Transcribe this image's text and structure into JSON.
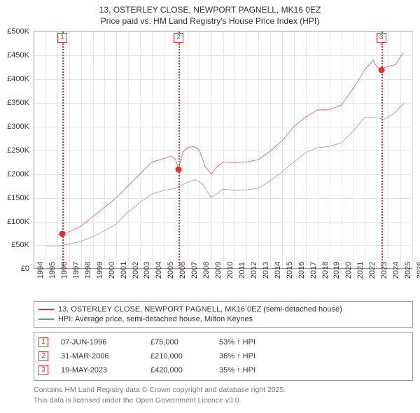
{
  "title_line1": "13, OSTERLEY CLOSE, NEWPORT PAGNELL, MK16 0EZ",
  "title_line2": "Price paid vs. HM Land Registry's House Price Index (HPI)",
  "chart": {
    "type": "line",
    "background_color": "#ffffff",
    "grid_color": "#e4e4e4",
    "axis_color": "#999999",
    "xlim": [
      1994,
      2026
    ],
    "ylim": [
      0,
      500000
    ],
    "ytick_step": 50000,
    "yticks": [
      0,
      50000,
      100000,
      150000,
      200000,
      250000,
      300000,
      350000,
      400000,
      450000,
      500000
    ],
    "ytick_labels": [
      "£0",
      "£50K",
      "£100K",
      "£150K",
      "£200K",
      "£250K",
      "£300K",
      "£350K",
      "£400K",
      "£450K",
      "£500K"
    ],
    "xticks": [
      1994,
      1995,
      1996,
      1997,
      1998,
      1999,
      2000,
      2001,
      2002,
      2003,
      2004,
      2005,
      2006,
      2007,
      2008,
      2009,
      2010,
      2011,
      2012,
      2013,
      2014,
      2015,
      2016,
      2017,
      2018,
      2019,
      2020,
      2021,
      2022,
      2023,
      2024,
      2025,
      2026
    ],
    "label_fontsize": 11,
    "line_width": 2,
    "series": [
      {
        "key": "price_paid",
        "label": "13, OSTERLEY CLOSE, NEWPORT PAGNELL, MK16 0EZ (semi-detached house)",
        "color": "#e03030",
        "data": [
          [
            1996.0,
            72000
          ],
          [
            1996.43,
            75000
          ],
          [
            1997.0,
            78000
          ],
          [
            1998.0,
            90000
          ],
          [
            1999.0,
            110000
          ],
          [
            2000.0,
            130000
          ],
          [
            2001.0,
            150000
          ],
          [
            2002.0,
            175000
          ],
          [
            2003.0,
            200000
          ],
          [
            2004.0,
            225000
          ],
          [
            2005.0,
            232000
          ],
          [
            2005.6,
            238000
          ],
          [
            2006.0,
            230000
          ],
          [
            2006.25,
            210000
          ],
          [
            2006.6,
            245000
          ],
          [
            2007.0,
            255000
          ],
          [
            2007.5,
            258000
          ],
          [
            2008.0,
            250000
          ],
          [
            2008.5,
            215000
          ],
          [
            2009.0,
            200000
          ],
          [
            2009.5,
            215000
          ],
          [
            2010.0,
            225000
          ],
          [
            2011.0,
            224000
          ],
          [
            2012.0,
            225000
          ],
          [
            2013.0,
            230000
          ],
          [
            2014.0,
            248000
          ],
          [
            2015.0,
            270000
          ],
          [
            2016.0,
            300000
          ],
          [
            2017.0,
            320000
          ],
          [
            2018.0,
            335000
          ],
          [
            2019.0,
            335000
          ],
          [
            2020.0,
            345000
          ],
          [
            2021.0,
            380000
          ],
          [
            2022.0,
            420000
          ],
          [
            2022.7,
            440000
          ],
          [
            2023.0,
            425000
          ],
          [
            2023.38,
            420000
          ],
          [
            2023.8,
            425000
          ],
          [
            2024.2,
            428000
          ],
          [
            2024.6,
            430000
          ],
          [
            2025.0,
            448000
          ],
          [
            2025.3,
            455000
          ]
        ]
      },
      {
        "key": "hpi",
        "label": "HPI: Average price, semi-detached house, Milton Keynes",
        "color": "#5e8fc8",
        "data": [
          [
            1995.0,
            48000
          ],
          [
            1996.0,
            48000
          ],
          [
            1997.0,
            52000
          ],
          [
            1998.0,
            58000
          ],
          [
            1999.0,
            68000
          ],
          [
            2000.0,
            80000
          ],
          [
            2001.0,
            95000
          ],
          [
            2002.0,
            120000
          ],
          [
            2003.0,
            140000
          ],
          [
            2004.0,
            158000
          ],
          [
            2005.0,
            165000
          ],
          [
            2006.0,
            170000
          ],
          [
            2007.0,
            182000
          ],
          [
            2007.7,
            188000
          ],
          [
            2008.3,
            178000
          ],
          [
            2009.0,
            150000
          ],
          [
            2009.6,
            160000
          ],
          [
            2010.0,
            168000
          ],
          [
            2011.0,
            165000
          ],
          [
            2012.0,
            166000
          ],
          [
            2013.0,
            170000
          ],
          [
            2014.0,
            185000
          ],
          [
            2015.0,
            205000
          ],
          [
            2016.0,
            225000
          ],
          [
            2017.0,
            245000
          ],
          [
            2018.0,
            255000
          ],
          [
            2019.0,
            258000
          ],
          [
            2020.0,
            265000
          ],
          [
            2021.0,
            290000
          ],
          [
            2022.0,
            320000
          ],
          [
            2023.0,
            318000
          ],
          [
            2023.6,
            315000
          ],
          [
            2024.0,
            320000
          ],
          [
            2024.6,
            330000
          ],
          [
            2025.0,
            342000
          ],
          [
            2025.3,
            348000
          ]
        ]
      }
    ],
    "markers": [
      {
        "idx": "1",
        "x": 1996.43,
        "y": 75000
      },
      {
        "idx": "2",
        "x": 2006.25,
        "y": 210000
      },
      {
        "idx": "3",
        "x": 2023.38,
        "y": 420000
      }
    ],
    "marker_color": "#e03030"
  },
  "legend": {
    "rows": [
      {
        "color": "#e03030",
        "label": "13, OSTERLEY CLOSE, NEWPORT PAGNELL, MK16 0EZ (semi-detached house)"
      },
      {
        "color": "#5e8fc8",
        "label": "HPI: Average price, semi-detached house, Milton Keynes"
      }
    ]
  },
  "events": [
    {
      "idx": "1",
      "date": "07-JUN-1996",
      "price": "£75,000",
      "delta": "53% ↑ HPI"
    },
    {
      "idx": "2",
      "date": "31-MAR-2006",
      "price": "£210,000",
      "delta": "36% ↑ HPI"
    },
    {
      "idx": "3",
      "date": "19-MAY-2023",
      "price": "£420,000",
      "delta": "35% ↑ HPI"
    }
  ],
  "footnote_line1": "Contains HM Land Registry data © Crown copyright and database right 2025.",
  "footnote_line2": "This data is licensed under the Open Government Licence v3.0."
}
